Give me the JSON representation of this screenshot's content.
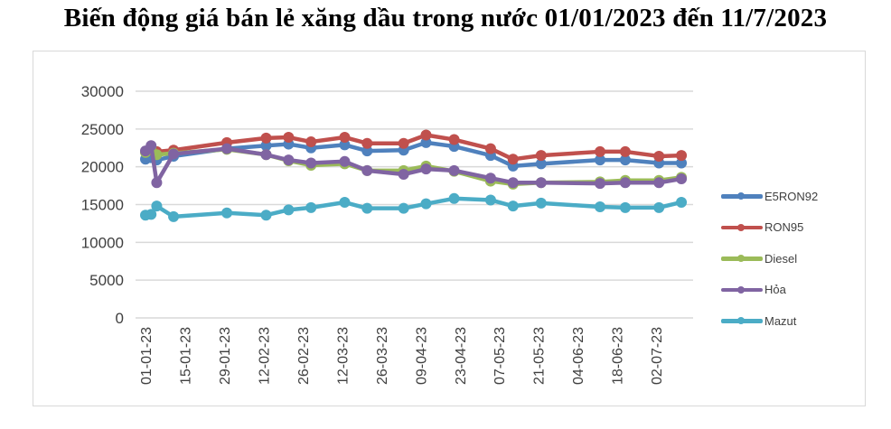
{
  "title": "Biến động giá bán lẻ xăng dầu trong nước 01/01/2023 đến 11/7/2023",
  "chart_data": {
    "type": "line",
    "title": "Biến động giá bán lẻ xăng dầu trong nước 01/01/2023 đến 11/7/2023",
    "xlabel": "",
    "ylabel": "",
    "ylim": [
      0,
      30000
    ],
    "yticks": [
      0,
      5000,
      10000,
      15000,
      20000,
      25000,
      30000
    ],
    "xtick_labels": [
      "01-01-23",
      "15-01-23",
      "29-01-23",
      "12-02-23",
      "26-02-23",
      "12-03-23",
      "26-03-23",
      "09-04-23",
      "23-04-23",
      "07-05-23",
      "21-05-23",
      "04-06-23",
      "18-06-23",
      "02-07-23"
    ],
    "grid": true,
    "legend_position": "right",
    "x": [
      "01-01-23",
      "03-01-23",
      "05-01-23",
      "11-01-23",
      "30-01-23",
      "13-02-23",
      "21-02-23",
      "01-03-23",
      "13-03-23",
      "21-03-23",
      "03-04-23",
      "11-04-23",
      "21-04-23",
      "04-05-23",
      "12-05-23",
      "22-05-23",
      "12-06-23",
      "21-06-23",
      "03-07-23",
      "11-07-23"
    ],
    "series": [
      {
        "name": "E5RON92",
        "color": "#4f81bd",
        "values": [
          21000,
          21200,
          20900,
          21400,
          22400,
          22800,
          23000,
          22500,
          22900,
          22100,
          22200,
          23200,
          22700,
          21500,
          20100,
          20400,
          20900,
          20900,
          20500,
          20500
        ]
      },
      {
        "name": "RON95",
        "color": "#c0504d",
        "values": [
          22000,
          22200,
          22000,
          22200,
          23200,
          23800,
          23900,
          23300,
          23900,
          23100,
          23100,
          24200,
          23600,
          22400,
          21000,
          21500,
          22000,
          22000,
          21400,
          21500
        ]
      },
      {
        "name": "Diesel",
        "color": "#9bbb59",
        "values": [
          21900,
          22600,
          21600,
          21800,
          22300,
          21600,
          20800,
          20200,
          20400,
          19500,
          19500,
          20100,
          19400,
          18100,
          17700,
          17900,
          18000,
          18200,
          18200,
          18600
        ]
      },
      {
        "name": "Hỏa",
        "color": "#8064a2",
        "values": [
          22100,
          22800,
          17900,
          21700,
          22400,
          21600,
          20900,
          20500,
          20700,
          19500,
          19000,
          19700,
          19500,
          18500,
          17900,
          17900,
          17800,
          17900,
          17900,
          18400
        ]
      },
      {
        "name": "Mazut",
        "color": "#4bacc6",
        "values": [
          13600,
          13700,
          14800,
          13400,
          13900,
          13600,
          14300,
          14600,
          15300,
          14500,
          14500,
          15100,
          15800,
          15600,
          14800,
          15200,
          14700,
          14600,
          14600,
          15300
        ]
      }
    ]
  },
  "legend": {
    "items": [
      {
        "label": "E5RON92",
        "color": "#4f81bd"
      },
      {
        "label": "RON95",
        "color": "#c0504d"
      },
      {
        "label": "Diesel",
        "color": "#9bbb59"
      },
      {
        "label": "Hỏa",
        "color": "#8064a2"
      },
      {
        "label": "Mazut",
        "color": "#4bacc6"
      }
    ]
  }
}
